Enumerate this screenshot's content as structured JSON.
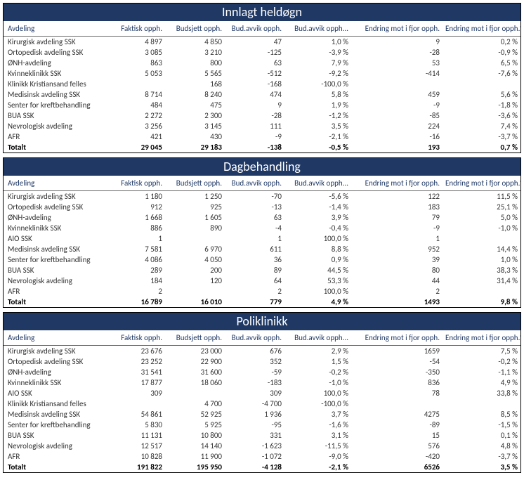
{
  "columns": [
    "Avdeling",
    "Faktisk opph.",
    "Budsjett opph.",
    "Bud.avvik opph.",
    "Bud.avvik opph...",
    "Endring mot i fjor opph.",
    "Endring mot i fjor opph.%"
  ],
  "sections": [
    {
      "title": "Innlagt heldøgn",
      "rows": [
        [
          "Kirurgisk avdeling SSK",
          "4 897",
          "4 850",
          "47",
          "1,0 %",
          "9",
          "0,2 %"
        ],
        [
          "Ortopedisk avdeling SSK",
          "3 085",
          "3 210",
          "-125",
          "-3,9 %",
          "-28",
          "-0,9 %"
        ],
        [
          "ØNH-avdeling",
          "863",
          "800",
          "63",
          "7,9 %",
          "53",
          "6,5 %"
        ],
        [
          "Kvinneklinikk SSK",
          "5 053",
          "5 565",
          "-512",
          "-9,2 %",
          "-414",
          "-7,6 %"
        ],
        [
          "Klinikk Kristiansand felles",
          "",
          "168",
          "-168",
          "-100,0 %",
          "",
          ""
        ],
        [
          "Medisinsk avdeling SSK",
          "8 714",
          "8 240",
          "474",
          "5,8 %",
          "459",
          "5,6 %"
        ],
        [
          "Senter for kreftbehandling",
          "484",
          "475",
          "9",
          "1,9 %",
          "-9",
          "-1,8 %"
        ],
        [
          "BUA SSK",
          "2 272",
          "2 300",
          "-28",
          "-1,2 %",
          "-85",
          "-3,6 %"
        ],
        [
          "Nevrologisk avdeling",
          "3 256",
          "3 145",
          "111",
          "3,5 %",
          "224",
          "7,4 %"
        ],
        [
          "AFR",
          "421",
          "430",
          "-9",
          "-2,1 %",
          "-16",
          "-3,7 %"
        ]
      ],
      "total": [
        "Totalt",
        "29 045",
        "29 183",
        "-138",
        "-0,5 %",
        "193",
        "0,7 %"
      ]
    },
    {
      "title": "Dagbehandling",
      "rows": [
        [
          "Kirurgisk avdeling SSK",
          "1 180",
          "1 250",
          "-70",
          "-5,6 %",
          "122",
          "11,5 %"
        ],
        [
          "Ortopedisk avdeling SSK",
          "912",
          "925",
          "-13",
          "-1,4 %",
          "183",
          "25,1 %"
        ],
        [
          "ØNH-avdeling",
          "1 668",
          "1 605",
          "63",
          "3,9 %",
          "79",
          "5,0 %"
        ],
        [
          "Kvinneklinikk SSK",
          "886",
          "890",
          "-4",
          "-0,4 %",
          "-9",
          "-1,0 %"
        ],
        [
          "AIO SSK",
          "1",
          "",
          "1",
          "100,0 %",
          "1",
          ""
        ],
        [
          "Medisinsk avdeling SSK",
          "7 581",
          "6 970",
          "611",
          "8,8 %",
          "952",
          "14,4 %"
        ],
        [
          "Senter for kreftbehandling",
          "4 086",
          "4 050",
          "36",
          "0,9 %",
          "39",
          "1,0 %"
        ],
        [
          "BUA SSK",
          "289",
          "200",
          "89",
          "44,5 %",
          "80",
          "38,3 %"
        ],
        [
          "Nevrologisk avdeling",
          "184",
          "120",
          "64",
          "53,3 %",
          "44",
          "31,4 %"
        ],
        [
          "AFR",
          "2",
          "",
          "2",
          "100,0 %",
          "2",
          ""
        ]
      ],
      "total": [
        "Totalt",
        "16 789",
        "16 010",
        "779",
        "4,9 %",
        "1493",
        "9,8 %"
      ]
    },
    {
      "title": "Poliklinikk",
      "rows": [
        [
          "Kirurgisk avdeling SSK",
          "23 676",
          "23 000",
          "676",
          "2,9 %",
          "1659",
          "7,5 %"
        ],
        [
          "Ortopedisk avdeling SSK",
          "23 252",
          "22 900",
          "352",
          "1,5 %",
          "-54",
          "-0,2 %"
        ],
        [
          "ØNH-avdeling",
          "31 541",
          "31 600",
          "-59",
          "-0,2 %",
          "-350",
          "-1,1 %"
        ],
        [
          "Kvinneklinikk SSK",
          "17 877",
          "18 060",
          "-183",
          "-1,0 %",
          "836",
          "4,9 %"
        ],
        [
          "AIO SSK",
          "309",
          "",
          "309",
          "100,0 %",
          "78",
          "33,8 %"
        ],
        [
          "Klinikk Kristiansand felles",
          "",
          "4 700",
          "-4 700",
          "-100,0 %",
          "",
          ""
        ],
        [
          "Medisinsk avdeling SSK",
          "54 861",
          "52 925",
          "1 936",
          "3,7 %",
          "4275",
          "8,5 %"
        ],
        [
          "Senter for kreftbehandling",
          "5 830",
          "5 925",
          "-95",
          "-1,6 %",
          "-89",
          "-1,5 %"
        ],
        [
          "BUA SSK",
          "11 131",
          "10 800",
          "331",
          "3,1 %",
          "15",
          "0,1 %"
        ],
        [
          "Nevrologisk avdeling",
          "12 517",
          "14 140",
          "-1 623",
          "-11,5 %",
          "576",
          "4,8 %"
        ],
        [
          "AFR",
          "10 828",
          "11 900",
          "-1 072",
          "-9,0 %",
          "-420",
          "-3,7 %"
        ]
      ],
      "total": [
        "Totalt",
        "191 822",
        "195 950",
        "-4 128",
        "-2,1 %",
        "6526",
        "3,5 %"
      ]
    }
  ]
}
